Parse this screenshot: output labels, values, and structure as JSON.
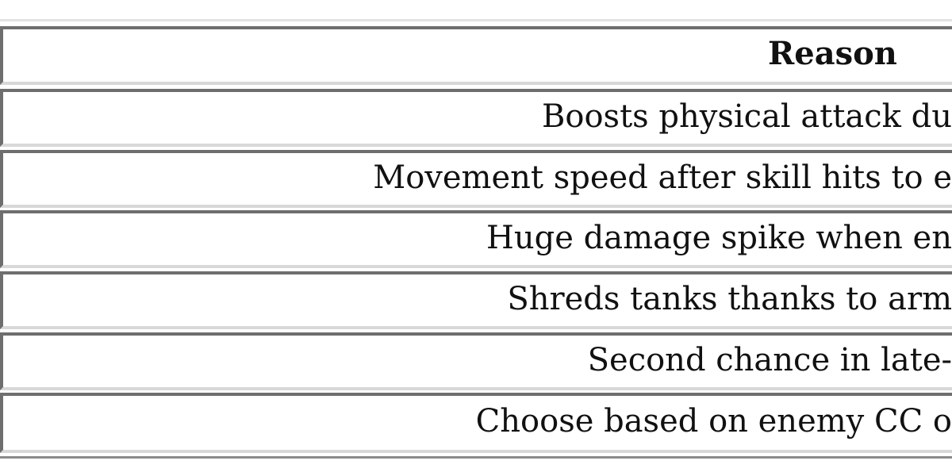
{
  "table": {
    "header": "Reason",
    "rows": [
      "Boosts physical attack du",
      "Movement speed after skill hits to e",
      "Huge damage spike when en",
      "Shreds tanks thanks to arm",
      "Second chance in late-",
      "Choose based on enemy CC o"
    ]
  }
}
